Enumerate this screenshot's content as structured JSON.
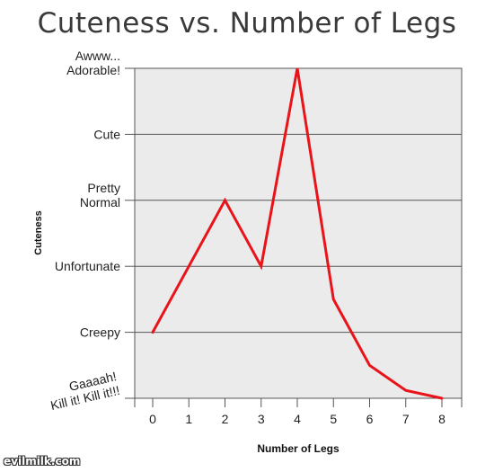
{
  "chart_data": {
    "type": "line",
    "title": "Cuteness vs. Number of Legs",
    "xlabel": "Number of Legs",
    "ylabel": "Cuteness",
    "x": [
      0,
      1,
      2,
      3,
      4,
      5,
      6,
      7,
      8
    ],
    "series": [
      {
        "values": [
          1,
          2,
          3,
          2,
          5,
          1.5,
          0.5,
          0.12,
          0
        ]
      }
    ],
    "y_tick_labels": [
      {
        "value": 0,
        "lines": [
          "Gaaaah!",
          "Kill it! Kill it!!!"
        ]
      },
      {
        "value": 1,
        "lines": [
          "Creepy"
        ]
      },
      {
        "value": 2,
        "lines": [
          "Unfortunate"
        ]
      },
      {
        "value": 3,
        "lines": [
          "Pretty",
          "Normal"
        ]
      },
      {
        "value": 4,
        "lines": [
          "Cute"
        ]
      },
      {
        "value": 5,
        "lines": [
          "Awww...",
          "Adorable!"
        ]
      }
    ],
    "xlim": [
      -0.5,
      8.5
    ],
    "ylim": [
      0,
      5
    ],
    "grid": true,
    "line_color": "#e8141a",
    "plot_background": "#ebebeb"
  },
  "watermark": "evilmilk.com"
}
